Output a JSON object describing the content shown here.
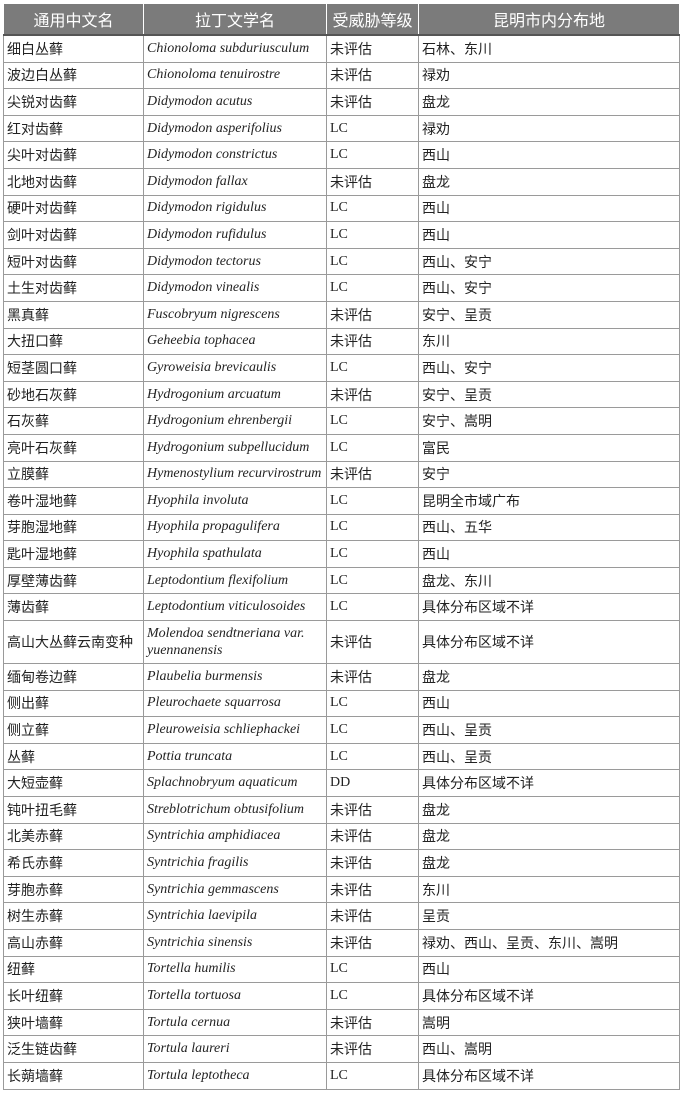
{
  "table": {
    "header": [
      "通用中文名",
      "拉丁文学名",
      "受威胁等级",
      "昆明市内分布地"
    ],
    "rows": [
      [
        "细白丛藓",
        "Chionoloma subduriusculum",
        "未评估",
        "石林、东川"
      ],
      [
        "波边白丛藓",
        "Chionoloma tenuirostre",
        "未评估",
        "禄劝"
      ],
      [
        "尖锐对齿藓",
        "Didymodon acutus",
        "未评估",
        "盘龙"
      ],
      [
        "红对齿藓",
        "Didymodon asperifolius",
        "LC",
        "禄劝"
      ],
      [
        "尖叶对齿藓",
        "Didymodon constrictus",
        "LC",
        "西山"
      ],
      [
        "北地对齿藓",
        "Didymodon fallax",
        "未评估",
        "盘龙"
      ],
      [
        "硬叶对齿藓",
        "Didymodon rigidulus",
        "LC",
        "西山"
      ],
      [
        "剑叶对齿藓",
        "Didymodon rufidulus",
        "LC",
        "西山"
      ],
      [
        "短叶对齿藓",
        "Didymodon tectorus",
        "LC",
        "西山、安宁"
      ],
      [
        "土生对齿藓",
        "Didymodon vinealis",
        "LC",
        "西山、安宁"
      ],
      [
        "黑真藓",
        "Fuscobryum nigrescens",
        "未评估",
        "安宁、呈贡"
      ],
      [
        "大扭口藓",
        "Geheebia tophacea",
        "未评估",
        "东川"
      ],
      [
        "短茎圆口藓",
        "Gyroweisia brevicaulis",
        "LC",
        "西山、安宁"
      ],
      [
        "砂地石灰藓",
        "Hydrogonium arcuatum",
        "未评估",
        "安宁、呈贡"
      ],
      [
        "石灰藓",
        "Hydrogonium ehrenbergii",
        "LC",
        "安宁、嵩明"
      ],
      [
        "亮叶石灰藓",
        "Hydrogonium subpellucidum",
        "LC",
        "富民"
      ],
      [
        "立膜藓",
        "Hymenostylium recurvirostrum",
        "未评估",
        "安宁"
      ],
      [
        "卷叶湿地藓",
        "Hyophila involuta",
        "LC",
        "昆明全市域广布"
      ],
      [
        "芽胞湿地藓",
        "Hyophila propagulifera",
        "LC",
        "西山、五华"
      ],
      [
        "匙叶湿地藓",
        "Hyophila spathulata",
        "LC",
        "西山"
      ],
      [
        "厚壁薄齿藓",
        "Leptodontium flexifolium",
        "LC",
        "盘龙、东川"
      ],
      [
        "薄齿藓",
        "Leptodontium viticulosoides",
        "LC",
        "具体分布区域不详"
      ],
      [
        "高山大丛藓云南变种",
        "Molendoa sendtneriana var. yuennanensis",
        "未评估",
        "具体分布区域不详"
      ],
      [
        "缅甸卷边藓",
        "Plaubelia burmensis",
        "未评估",
        "盘龙"
      ],
      [
        "侧出藓",
        "Pleurochaete squarrosa",
        "LC",
        "西山"
      ],
      [
        "侧立藓",
        "Pleuroweisia schliephackei",
        "LC",
        "西山、呈贡"
      ],
      [
        "丛藓",
        "Pottia truncata",
        "LC",
        "西山、呈贡"
      ],
      [
        "大短壶藓",
        "Splachnobryum aquaticum",
        "DD",
        "具体分布区域不详"
      ],
      [
        "钝叶扭毛藓",
        "Streblotrichum obtusifolium",
        "未评估",
        "盘龙"
      ],
      [
        "北美赤藓",
        "Syntrichia amphidiacea",
        "未评估",
        "盘龙"
      ],
      [
        "希氏赤藓",
        "Syntrichia fragilis",
        "未评估",
        "盘龙"
      ],
      [
        "芽胞赤藓",
        "Syntrichia gemmascens",
        "未评估",
        "东川"
      ],
      [
        "树生赤藓",
        "Syntrichia laevipila",
        "未评估",
        "呈贡"
      ],
      [
        "高山赤藓",
        "Syntrichia sinensis",
        "未评估",
        "禄劝、西山、呈贡、东川、嵩明"
      ],
      [
        "纽藓",
        "Tortella humilis",
        "LC",
        "西山"
      ],
      [
        "长叶纽藓",
        "Tortella tortuosa",
        "LC",
        "具体分布区域不详"
      ],
      [
        "狭叶墙藓",
        "Tortula cernua",
        "未评估",
        "嵩明"
      ],
      [
        "泛生链齿藓",
        "Tortula laureri",
        "未评估",
        "西山、嵩明"
      ],
      [
        "长蒴墙藓",
        "Tortula leptotheca",
        "LC",
        "具体分布区域不详"
      ]
    ]
  }
}
